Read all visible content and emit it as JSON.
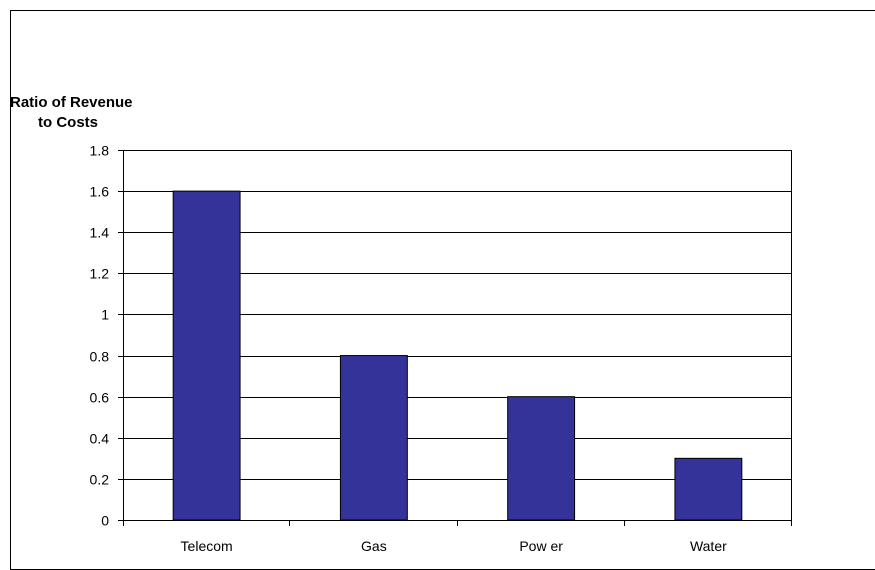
{
  "chart_data": {
    "type": "bar",
    "title": "",
    "ylabel_lines": [
      "Ratio of Revenue",
      "to Costs"
    ],
    "xlabel": "",
    "categories": [
      "Telecom",
      "Gas",
      "Pow er",
      "Water"
    ],
    "values": [
      1.6,
      0.8,
      0.6,
      0.3
    ],
    "ylim": [
      0,
      1.8
    ],
    "yticks": [
      "0",
      "0.2",
      "0.4",
      "0.6",
      "0.8",
      "1",
      "1.2",
      "1.4",
      "1.6",
      "1.8"
    ],
    "grid": true,
    "legend": "none",
    "bar_color": "#333399",
    "bar_edge_color": "#000000"
  }
}
